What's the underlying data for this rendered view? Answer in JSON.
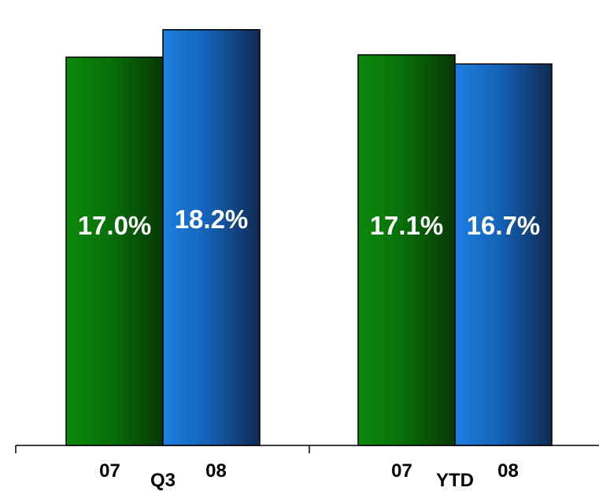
{
  "chart_data": {
    "type": "bar",
    "title": "",
    "xlabel": "",
    "ylabel": "",
    "ylim": [
      0,
      19.5
    ],
    "grid": false,
    "legend": "none",
    "colors": {
      "07": "#0b7d0b",
      "08": "#1a78d6",
      "axis": "#000000",
      "label_text": "#ffffff",
      "tick_text": "#000000"
    },
    "groups": [
      {
        "name": "Q3",
        "bars": [
          {
            "category": "07",
            "value": 17.0,
            "label": "17.0%"
          },
          {
            "category": "08",
            "value": 18.2,
            "label": "18.2%"
          }
        ]
      },
      {
        "name": "YTD",
        "bars": [
          {
            "category": "07",
            "value": 17.1,
            "label": "17.1%"
          },
          {
            "category": "08",
            "value": 16.7,
            "label": "16.7%"
          }
        ]
      }
    ]
  }
}
